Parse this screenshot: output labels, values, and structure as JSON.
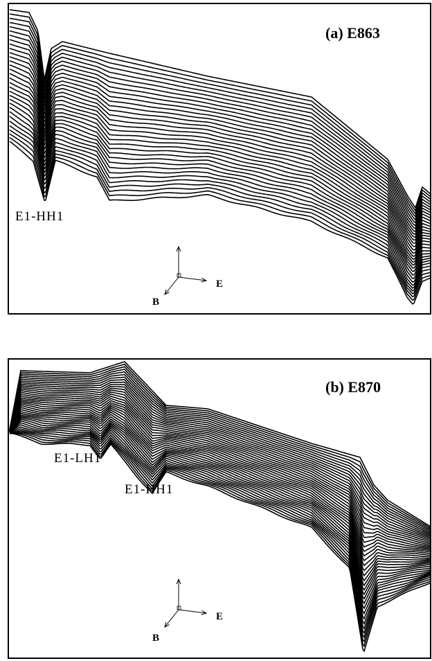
{
  "panels": [
    {
      "label": "(a) E863",
      "annotations": [
        "E1-HH1"
      ],
      "axes": {
        "energy": "E",
        "field": "B"
      }
    },
    {
      "label": "(b) E870",
      "annotations": [
        "E1-LH1",
        "E1-HH1"
      ],
      "axes": {
        "energy": "E",
        "field": "B"
      }
    }
  ]
}
